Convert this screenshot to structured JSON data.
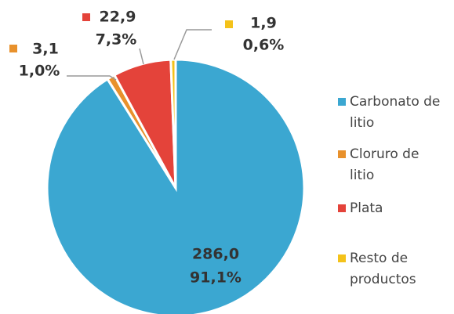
{
  "chart_data": {
    "type": "pie",
    "categories": [
      "Carbonato de litio",
      "Cloruro de litio",
      "Plata",
      "Resto de productos"
    ],
    "values": [
      286.0,
      3.1,
      22.9,
      1.9
    ],
    "value_labels": [
      "286,0",
      "3,1",
      "22,9",
      "1,9"
    ],
    "percents": [
      91.1,
      1.0,
      7.3,
      0.6
    ],
    "percent_labels": [
      "91,1%",
      "1,0%",
      "7,3%",
      "0,6%"
    ],
    "colors": [
      "#3ba7d1",
      "#e8912c",
      "#e4433a",
      "#f4c21a"
    ],
    "legend": "right"
  }
}
